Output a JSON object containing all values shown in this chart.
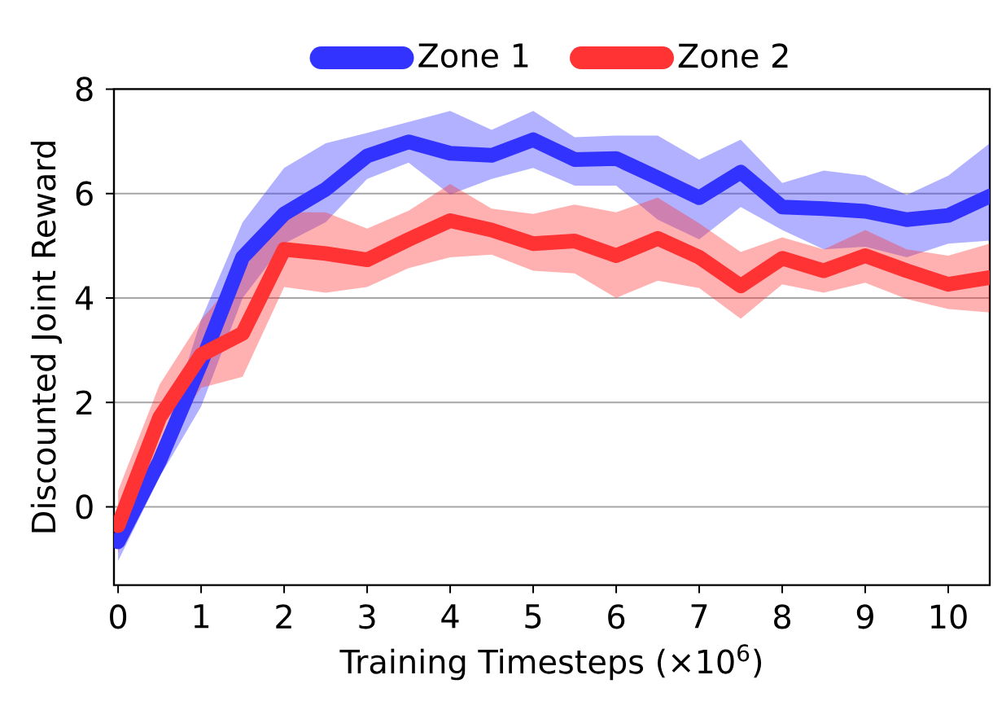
{
  "chart_data": {
    "type": "line",
    "xlabel": "Training Timesteps (×10$^{6}$)",
    "ylabel": "Discounted Joint Reward",
    "x": [
      0,
      0.5,
      1,
      1.5,
      2,
      2.5,
      3,
      3.5,
      4,
      4.5,
      5,
      5.5,
      6,
      6.5,
      7,
      7.5,
      8,
      8.5,
      9,
      9.5,
      10,
      10.5
    ],
    "series": [
      {
        "name": "Zone 1",
        "color": "#3333ff",
        "values": [
          -0.67,
          0.88,
          2.75,
          4.78,
          5.61,
          6.08,
          6.72,
          6.99,
          6.77,
          6.73,
          7.03,
          6.65,
          6.67,
          6.3,
          5.92,
          6.41,
          5.74,
          5.71,
          5.66,
          5.5,
          5.58,
          5.95
        ],
        "lower": [
          -1.04,
          0.57,
          1.92,
          4.0,
          5.04,
          5.45,
          6.28,
          6.59,
          5.98,
          6.28,
          6.49,
          6.15,
          6.15,
          5.5,
          5.12,
          5.74,
          5.3,
          4.93,
          4.98,
          4.78,
          5.04,
          5.1
        ],
        "upper": [
          -0.16,
          1.09,
          3.58,
          5.45,
          6.49,
          6.96,
          7.16,
          7.37,
          7.58,
          7.22,
          7.58,
          7.08,
          7.11,
          7.11,
          6.65,
          7.03,
          6.2,
          6.44,
          6.34,
          5.97,
          6.34,
          6.96
        ]
      },
      {
        "name": "Zone 2",
        "color": "#ff3333",
        "values": [
          -0.36,
          1.71,
          2.91,
          3.32,
          4.93,
          4.85,
          4.73,
          5.12,
          5.48,
          5.3,
          5.04,
          5.09,
          4.81,
          5.14,
          4.78,
          4.23,
          4.76,
          4.52,
          4.81,
          4.52,
          4.26,
          4.39
        ],
        "lower": [
          -0.88,
          1.09,
          2.28,
          2.49,
          4.21,
          4.1,
          4.21,
          4.57,
          4.78,
          4.83,
          4.52,
          4.47,
          4.0,
          4.33,
          4.19,
          3.6,
          4.26,
          4.1,
          4.29,
          3.98,
          3.79,
          3.72
        ],
        "upper": [
          0.31,
          2.34,
          3.58,
          4.52,
          5.64,
          5.64,
          5.33,
          5.67,
          6.18,
          5.71,
          5.61,
          5.79,
          5.64,
          5.92,
          5.43,
          4.88,
          5.16,
          4.93,
          5.3,
          4.93,
          4.81,
          5.04
        ]
      }
    ],
    "xlim": [
      -0.05,
      10.5
    ],
    "ylim": [
      -1.5,
      8
    ],
    "xticks": [
      0,
      1,
      2,
      3,
      4,
      5,
      6,
      7,
      8,
      9,
      10
    ],
    "yticks": [
      0,
      2,
      4,
      6,
      8
    ],
    "grid": "y",
    "legend": "top",
    "line_style": "solid",
    "marker": "none"
  }
}
